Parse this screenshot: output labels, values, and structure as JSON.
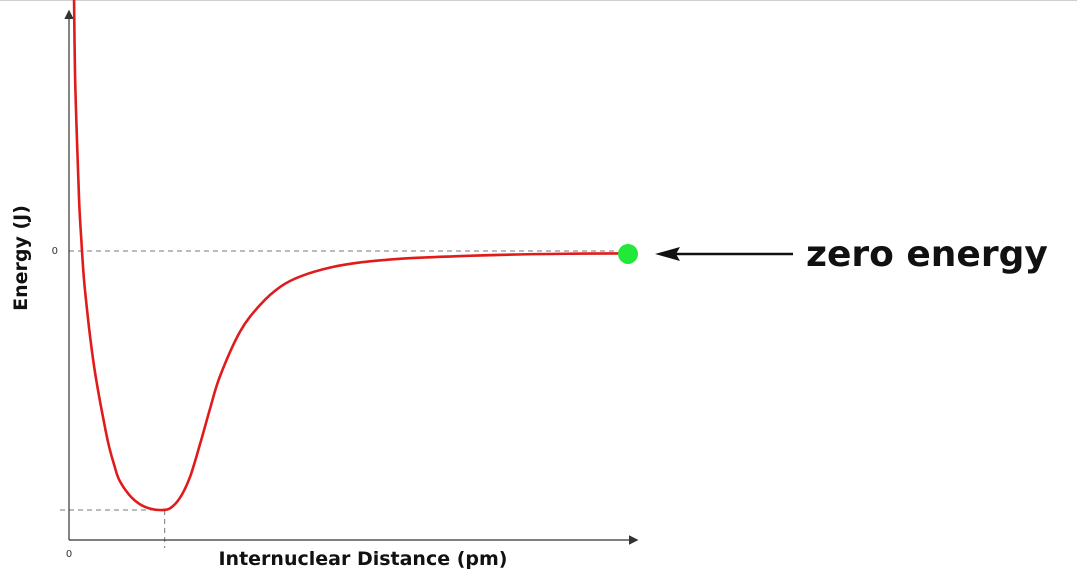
{
  "chart_data": {
    "type": "line",
    "title": "",
    "xlabel": "Internuclear Distance (pm)",
    "ylabel": "Energy (J)",
    "x_tick_labels": [
      "0"
    ],
    "y_tick_labels": [
      "0"
    ],
    "grid": false,
    "series": [
      {
        "color": "#e01b1b",
        "points": [
          [
            0.05,
            8.6
          ],
          [
            0.06,
            6.0
          ],
          [
            0.08,
            3.6
          ],
          [
            0.1,
            1.7
          ],
          [
            0.12,
            0.5
          ],
          [
            0.15,
            -1.0
          ],
          [
            0.2,
            -2.6
          ],
          [
            0.25,
            -3.9
          ],
          [
            0.3,
            -4.9
          ],
          [
            0.35,
            -5.8
          ],
          [
            0.4,
            -6.6
          ],
          [
            0.45,
            -7.2
          ],
          [
            0.5,
            -7.7
          ],
          [
            0.6,
            -8.2
          ],
          [
            0.7,
            -8.5
          ],
          [
            0.8,
            -8.65
          ],
          [
            0.9,
            -8.7
          ],
          [
            1.0,
            -8.65
          ],
          [
            1.1,
            -8.3
          ],
          [
            1.2,
            -7.6
          ],
          [
            1.3,
            -6.5
          ],
          [
            1.4,
            -5.3
          ],
          [
            1.5,
            -4.2
          ],
          [
            1.7,
            -2.7
          ],
          [
            1.9,
            -1.8
          ],
          [
            2.1,
            -1.2
          ],
          [
            2.3,
            -0.85
          ],
          [
            2.6,
            -0.55
          ],
          [
            2.9,
            -0.38
          ],
          [
            3.3,
            -0.26
          ],
          [
            3.8,
            -0.18
          ],
          [
            4.4,
            -0.12
          ],
          [
            5.0,
            -0.09
          ],
          [
            5.5,
            -0.08
          ]
        ]
      }
    ],
    "reference_lines": [
      {
        "axis": "y",
        "value": 0,
        "style": "dashed"
      },
      {
        "axis": "y",
        "value": -8.7,
        "style": "dashed"
      },
      {
        "axis": "x",
        "value": 0.95,
        "style": "dashed"
      }
    ],
    "marker": {
      "x": 5.55,
      "y": -0.1,
      "color": "#22e83a"
    },
    "annotation": {
      "text": "zero energy",
      "arrow": "left"
    }
  }
}
